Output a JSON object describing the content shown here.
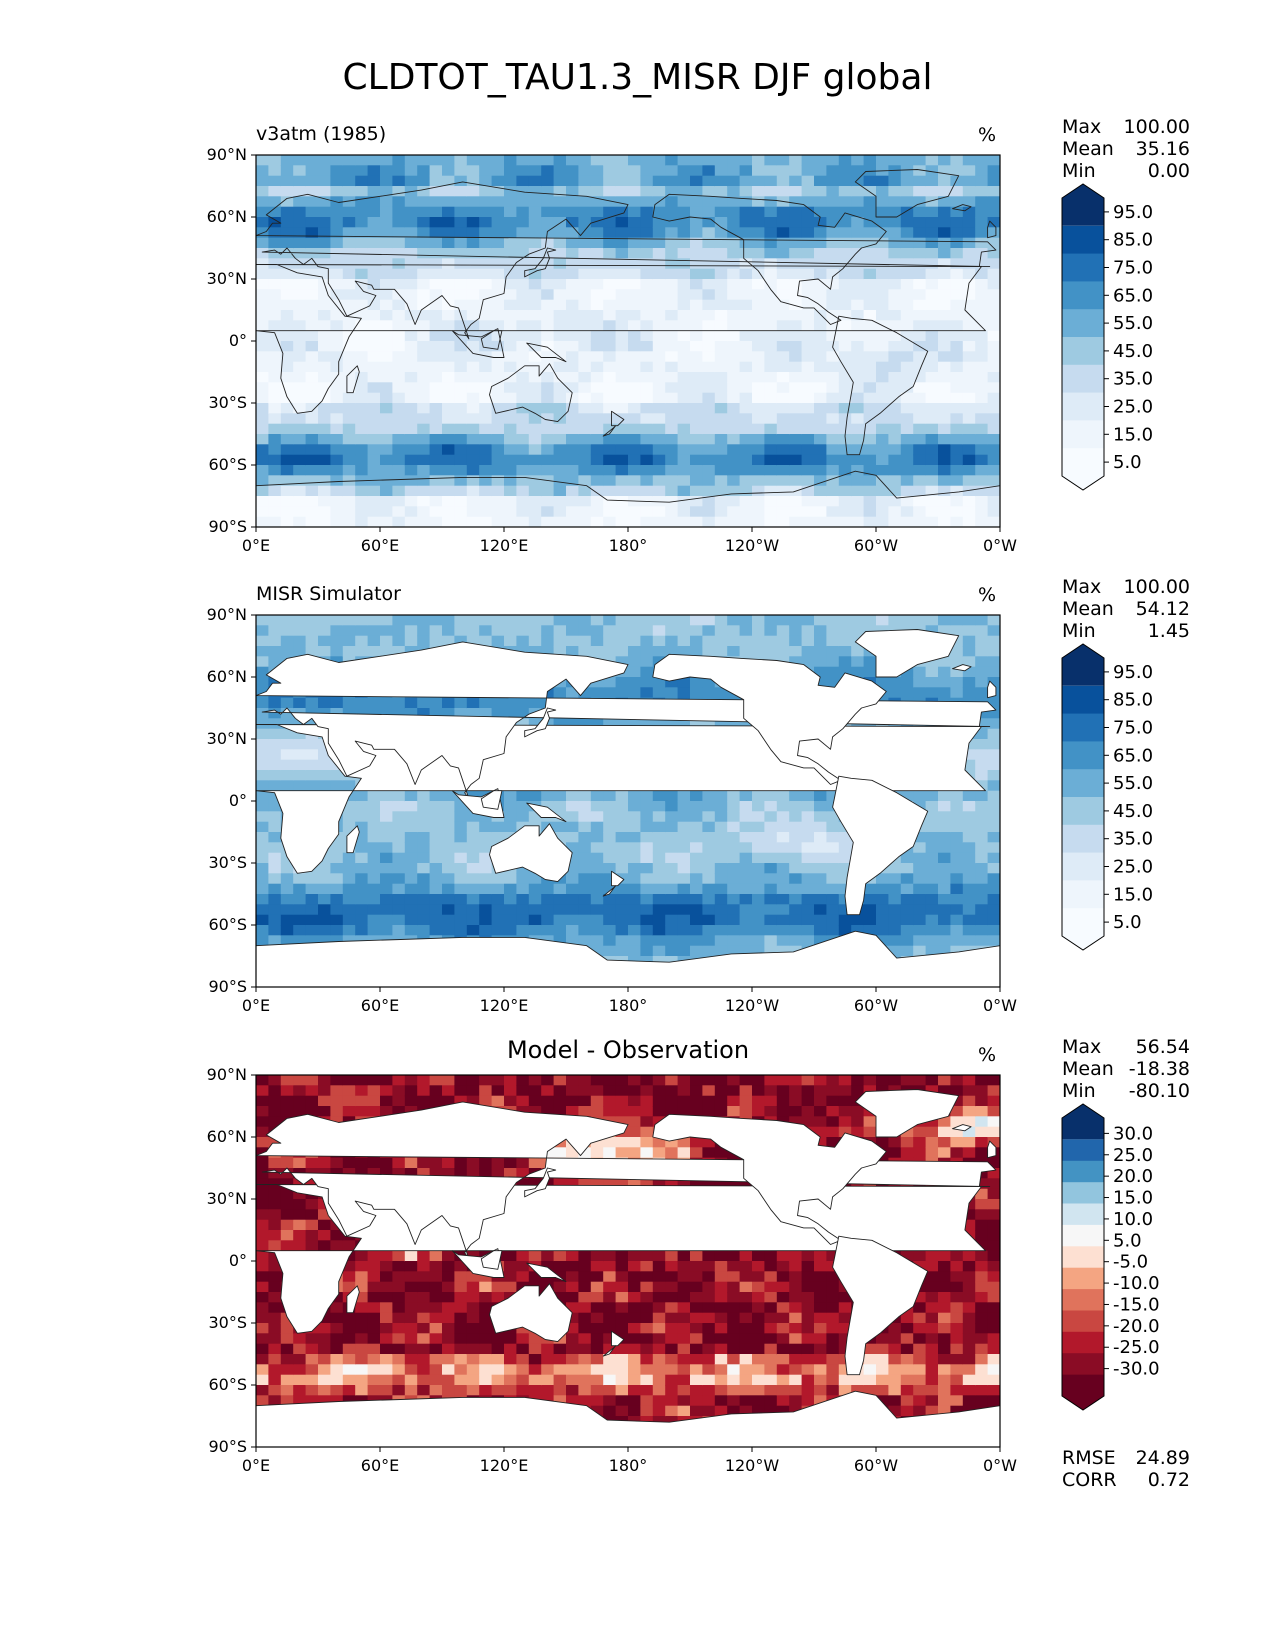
{
  "figure": {
    "title": "CLDTOT_TAU1.3_MISR DJF global"
  },
  "axes": {
    "lat_ticks": [
      "90°N",
      "60°N",
      "30°N",
      "0°",
      "30°S",
      "60°S",
      "90°S"
    ],
    "lon_ticks": [
      "0°E",
      "60°E",
      "120°E",
      "180°",
      "120°W",
      "60°W",
      "0°W"
    ]
  },
  "chart_data": [
    {
      "type": "heatmap",
      "title": "v3atm (1985)",
      "units": "%",
      "colormap": "Blues",
      "stats": {
        "Max": "100.00",
        "Mean": "35.16",
        "Min": "0.00"
      },
      "colorbar": {
        "labels": [
          "95.0",
          "85.0",
          "75.0",
          "65.0",
          "55.0",
          "45.0",
          "35.0",
          "25.0",
          "15.0",
          "5.0"
        ],
        "colors": [
          "#08306b",
          "#08519c",
          "#2171b5",
          "#4292c6",
          "#6baed6",
          "#9ecae1",
          "#c6dbef",
          "#deebf7",
          "#eef5fc",
          "#f7fbff"
        ]
      },
      "xlim": [
        0,
        360
      ],
      "ylim": [
        -90,
        90
      ]
    },
    {
      "type": "heatmap",
      "title": "MISR Simulator",
      "units": "%",
      "colormap": "Blues",
      "stats": {
        "Max": "100.00",
        "Mean": "54.12",
        "Min": "1.45"
      },
      "colorbar": {
        "labels": [
          "95.0",
          "85.0",
          "75.0",
          "65.0",
          "55.0",
          "45.0",
          "35.0",
          "25.0",
          "15.0",
          "5.0"
        ],
        "colors": [
          "#08306b",
          "#08519c",
          "#2171b5",
          "#4292c6",
          "#6baed6",
          "#9ecae1",
          "#c6dbef",
          "#deebf7",
          "#eef5fc",
          "#f7fbff"
        ]
      },
      "xlim": [
        0,
        360
      ],
      "ylim": [
        -90,
        90
      ]
    },
    {
      "type": "heatmap",
      "title": "Model - Observation",
      "units": "%",
      "colormap": "RdBu",
      "stats": {
        "Max": "56.54",
        "Mean": "-18.38",
        "Min": "-80.10"
      },
      "error_stats": {
        "RMSE": "24.89",
        "CORR": "0.72"
      },
      "colorbar": {
        "labels": [
          "30.0",
          "25.0",
          "20.0",
          "15.0",
          "10.0",
          "5.0",
          "-5.0",
          "-10.0",
          "-15.0",
          "-20.0",
          "-25.0",
          "-30.0"
        ],
        "colors": [
          "#08306b",
          "#2166ac",
          "#4393c3",
          "#92c5de",
          "#d1e5f0",
          "#f7f7f7",
          "#fde0d2",
          "#f4a582",
          "#e0735c",
          "#c94741",
          "#b2182b",
          "#8a0c25",
          "#67001f"
        ]
      },
      "xlim": [
        0,
        360
      ],
      "ylim": [
        -90,
        90
      ]
    }
  ]
}
